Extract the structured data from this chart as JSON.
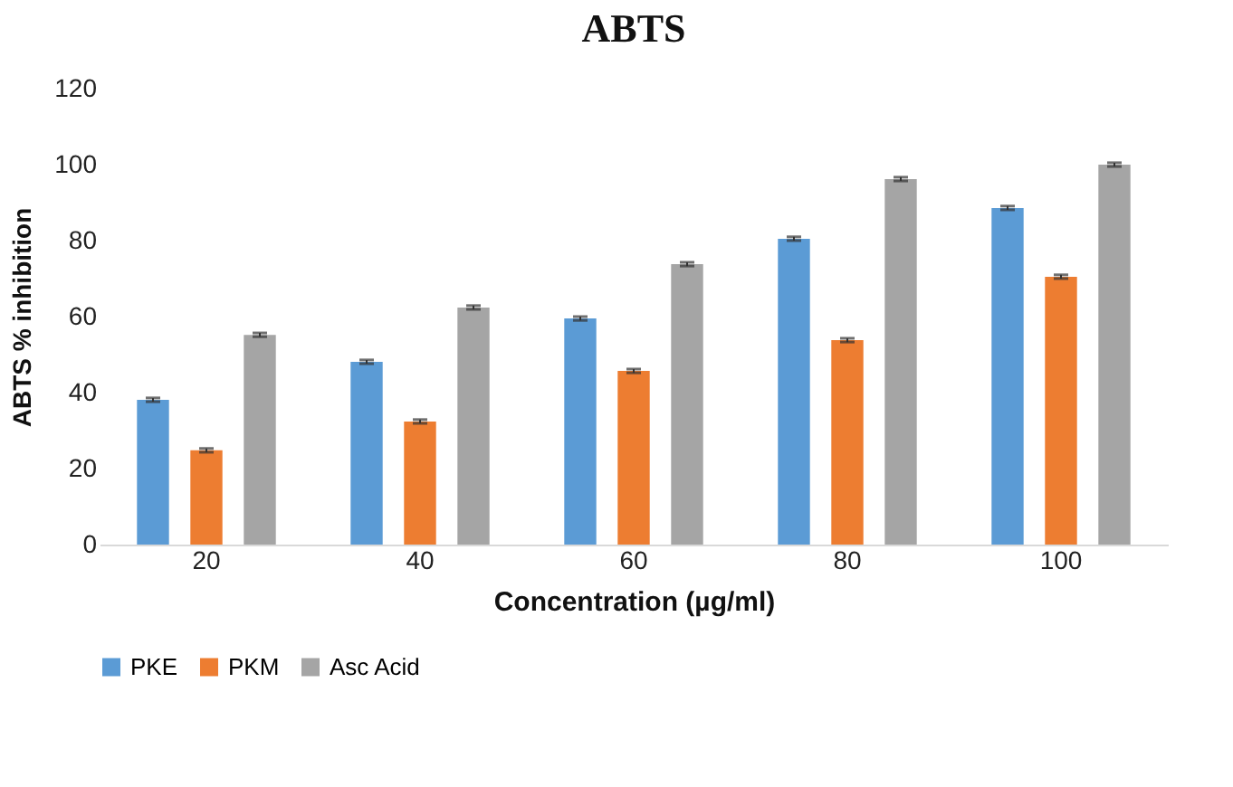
{
  "chart_data": {
    "type": "bar",
    "title": "ABTS",
    "xlabel": "Concentration (µg/ml)",
    "ylabel": "ABTS % inhibition",
    "categories": [
      "20",
      "40",
      "60",
      "80",
      "100"
    ],
    "series": [
      {
        "name": "PKE",
        "color": "#5b9bd5",
        "values": [
          38.1,
          48.1,
          59.5,
          80.5,
          88.6
        ],
        "errors": [
          0.5,
          0.5,
          0.5,
          0.5,
          0.5
        ]
      },
      {
        "name": "PKM",
        "color": "#ed7d31",
        "values": [
          24.8,
          32.4,
          45.7,
          53.8,
          70.5
        ],
        "errors": [
          0.5,
          0.5,
          0.5,
          0.5,
          0.5
        ]
      },
      {
        "name": "Asc Acid",
        "color": "#a5a5a5",
        "values": [
          55.2,
          62.4,
          73.8,
          96.2,
          100
        ],
        "errors": [
          0.5,
          0.5,
          0.5,
          0.5,
          0.5
        ]
      }
    ],
    "ylim": [
      0,
      120
    ],
    "yticks": [
      0,
      20,
      40,
      60,
      80,
      100,
      120
    ],
    "grid": false,
    "legend": "bottom"
  }
}
